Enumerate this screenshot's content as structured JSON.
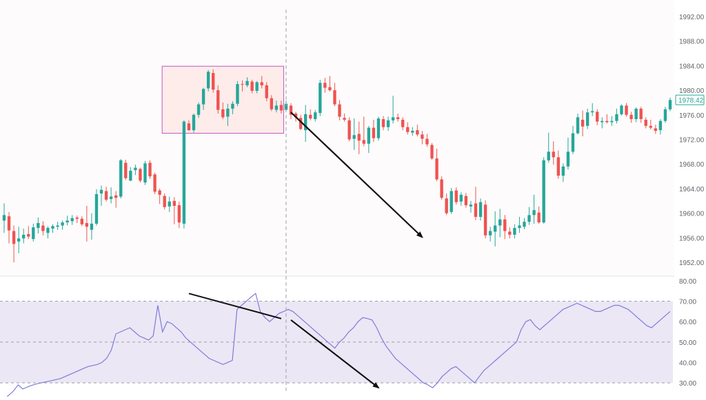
{
  "chart_data": [
    {
      "type": "candlestick",
      "title": "",
      "ylim": [
        1950,
        1994
      ],
      "y_ticks": [
        "1992.00",
        "1988.00",
        "1984.00",
        "1980.00",
        "1976.00",
        "1972.00",
        "1968.00",
        "1964.00",
        "1960.00",
        "1956.00",
        "1952.00"
      ],
      "y_tick_values": [
        1992,
        1988,
        1984,
        1980,
        1976,
        1972,
        1968,
        1964,
        1960,
        1956,
        1952
      ],
      "last_price_label": "1978.42",
      "last_price": 1978.42,
      "colors": {
        "up": "#26a69a",
        "down": "#ef5350",
        "box_border": "#c455c4",
        "box_fill": "#fde8e6",
        "arrow": "#111111",
        "crosshair": "#9aa0a6"
      },
      "consolidation_box": {
        "start_index": 33,
        "end_index": 57,
        "high": 1983.9,
        "low": 1973.0
      },
      "crosshair_index": 58,
      "trend_arrow": {
        "from_index": 59,
        "from_price": 1976.4,
        "to_index": 86,
        "to_price": 1956.1
      },
      "candles": [
        {
          "o": 1958.8,
          "h": 1961.6,
          "l": 1956.8,
          "c": 1959.7
        },
        {
          "o": 1959.5,
          "h": 1960.2,
          "l": 1955.1,
          "c": 1957.2
        },
        {
          "o": 1957.1,
          "h": 1958.0,
          "l": 1952.0,
          "c": 1955.0
        },
        {
          "o": 1955.4,
          "h": 1957.8,
          "l": 1953.5,
          "c": 1955.9
        },
        {
          "o": 1955.9,
          "h": 1957.5,
          "l": 1955.1,
          "c": 1956.5
        },
        {
          "o": 1956.6,
          "h": 1957.9,
          "l": 1955.8,
          "c": 1956.2
        },
        {
          "o": 1955.8,
          "h": 1958.3,
          "l": 1955.4,
          "c": 1957.7
        },
        {
          "o": 1957.6,
          "h": 1959.3,
          "l": 1956.7,
          "c": 1958.4
        },
        {
          "o": 1958.0,
          "h": 1958.7,
          "l": 1956.4,
          "c": 1957.1
        },
        {
          "o": 1956.8,
          "h": 1957.9,
          "l": 1955.9,
          "c": 1957.6
        },
        {
          "o": 1957.5,
          "h": 1958.2,
          "l": 1956.8,
          "c": 1957.9
        },
        {
          "o": 1957.8,
          "h": 1958.6,
          "l": 1957.3,
          "c": 1958.0
        },
        {
          "o": 1958.0,
          "h": 1958.8,
          "l": 1957.3,
          "c": 1958.5
        },
        {
          "o": 1958.5,
          "h": 1959.6,
          "l": 1958.0,
          "c": 1958.8
        },
        {
          "o": 1958.7,
          "h": 1959.7,
          "l": 1958.1,
          "c": 1959.2
        },
        {
          "o": 1959.3,
          "h": 1959.6,
          "l": 1958.4,
          "c": 1959.1
        },
        {
          "o": 1959.1,
          "h": 1959.5,
          "l": 1957.9,
          "c": 1958.2
        },
        {
          "o": 1958.4,
          "h": 1961.2,
          "l": 1955.4,
          "c": 1957.8
        },
        {
          "o": 1957.3,
          "h": 1960.0,
          "l": 1955.7,
          "c": 1958.3
        },
        {
          "o": 1958.3,
          "h": 1963.9,
          "l": 1958.0,
          "c": 1963.1
        },
        {
          "o": 1963.2,
          "h": 1964.5,
          "l": 1961.2,
          "c": 1963.8
        },
        {
          "o": 1963.6,
          "h": 1964.3,
          "l": 1961.9,
          "c": 1962.2
        },
        {
          "o": 1962.3,
          "h": 1964.2,
          "l": 1961.6,
          "c": 1962.7
        },
        {
          "o": 1962.9,
          "h": 1963.6,
          "l": 1960.9,
          "c": 1962.5
        },
        {
          "o": 1962.7,
          "h": 1968.8,
          "l": 1962.4,
          "c": 1968.6
        },
        {
          "o": 1968.2,
          "h": 1968.7,
          "l": 1965.4,
          "c": 1965.7
        },
        {
          "o": 1965.3,
          "h": 1967.5,
          "l": 1965.2,
          "c": 1966.9
        },
        {
          "o": 1967.0,
          "h": 1967.9,
          "l": 1966.2,
          "c": 1967.4
        },
        {
          "o": 1967.2,
          "h": 1967.4,
          "l": 1965.0,
          "c": 1965.3
        },
        {
          "o": 1965.0,
          "h": 1968.5,
          "l": 1964.6,
          "c": 1968.1
        },
        {
          "o": 1968.2,
          "h": 1968.6,
          "l": 1965.6,
          "c": 1966.0
        },
        {
          "o": 1966.3,
          "h": 1966.6,
          "l": 1963.1,
          "c": 1963.5
        },
        {
          "o": 1963.7,
          "h": 1964.0,
          "l": 1961.5,
          "c": 1963.0
        },
        {
          "o": 1962.8,
          "h": 1963.2,
          "l": 1960.6,
          "c": 1961.0
        },
        {
          "o": 1961.1,
          "h": 1962.7,
          "l": 1960.2,
          "c": 1961.9
        },
        {
          "o": 1962.0,
          "h": 1962.6,
          "l": 1958.2,
          "c": 1961.2
        },
        {
          "o": 1961.3,
          "h": 1961.9,
          "l": 1957.6,
          "c": 1958.5
        },
        {
          "o": 1958.3,
          "h": 1975.1,
          "l": 1957.5,
          "c": 1974.9
        },
        {
          "o": 1974.6,
          "h": 1975.1,
          "l": 1973.4,
          "c": 1973.5
        },
        {
          "o": 1973.5,
          "h": 1976.2,
          "l": 1973.1,
          "c": 1976.0
        },
        {
          "o": 1976.0,
          "h": 1978.0,
          "l": 1975.5,
          "c": 1977.7
        },
        {
          "o": 1977.7,
          "h": 1980.4,
          "l": 1976.8,
          "c": 1980.2
        },
        {
          "o": 1980.3,
          "h": 1983.3,
          "l": 1979.8,
          "c": 1983.0
        },
        {
          "o": 1982.8,
          "h": 1983.4,
          "l": 1979.6,
          "c": 1980.1
        },
        {
          "o": 1980.0,
          "h": 1980.8,
          "l": 1976.2,
          "c": 1976.8
        },
        {
          "o": 1976.9,
          "h": 1978.0,
          "l": 1975.3,
          "c": 1975.6
        },
        {
          "o": 1975.7,
          "h": 1977.8,
          "l": 1974.2,
          "c": 1977.0
        },
        {
          "o": 1977.0,
          "h": 1978.2,
          "l": 1976.1,
          "c": 1977.8
        },
        {
          "o": 1977.8,
          "h": 1981.5,
          "l": 1977.4,
          "c": 1981.0
        },
        {
          "o": 1981.0,
          "h": 1981.6,
          "l": 1979.8,
          "c": 1980.9
        },
        {
          "o": 1980.8,
          "h": 1982.1,
          "l": 1980.5,
          "c": 1981.5
        },
        {
          "o": 1981.4,
          "h": 1981.7,
          "l": 1979.5,
          "c": 1979.9
        },
        {
          "o": 1979.9,
          "h": 1981.5,
          "l": 1979.5,
          "c": 1981.3
        },
        {
          "o": 1981.3,
          "h": 1982.3,
          "l": 1980.3,
          "c": 1980.8
        },
        {
          "o": 1980.8,
          "h": 1981.3,
          "l": 1978.2,
          "c": 1978.7
        },
        {
          "o": 1978.7,
          "h": 1979.2,
          "l": 1976.6,
          "c": 1976.9
        },
        {
          "o": 1976.8,
          "h": 1978.3,
          "l": 1976.4,
          "c": 1977.5
        },
        {
          "o": 1977.6,
          "h": 1978.3,
          "l": 1976.2,
          "c": 1976.7
        },
        {
          "o": 1976.8,
          "h": 1978.3,
          "l": 1976.4,
          "c": 1977.8
        },
        {
          "o": 1977.5,
          "h": 1977.9,
          "l": 1975.3,
          "c": 1976.0
        },
        {
          "o": 1976.2,
          "h": 1976.5,
          "l": 1974.9,
          "c": 1975.6
        },
        {
          "o": 1975.5,
          "h": 1976.0,
          "l": 1973.5,
          "c": 1973.7
        },
        {
          "o": 1973.5,
          "h": 1977.6,
          "l": 1971.6,
          "c": 1976.1
        },
        {
          "o": 1976.0,
          "h": 1976.9,
          "l": 1975.1,
          "c": 1975.4
        },
        {
          "o": 1975.3,
          "h": 1976.8,
          "l": 1974.9,
          "c": 1976.4
        },
        {
          "o": 1976.3,
          "h": 1981.7,
          "l": 1975.8,
          "c": 1981.2
        },
        {
          "o": 1981.2,
          "h": 1982.0,
          "l": 1979.6,
          "c": 1980.4
        },
        {
          "o": 1980.5,
          "h": 1982.3,
          "l": 1979.8,
          "c": 1980.0
        },
        {
          "o": 1980.0,
          "h": 1981.2,
          "l": 1977.4,
          "c": 1977.7
        },
        {
          "o": 1977.7,
          "h": 1978.4,
          "l": 1975.1,
          "c": 1975.7
        },
        {
          "o": 1975.5,
          "h": 1976.2,
          "l": 1974.9,
          "c": 1975.2
        },
        {
          "o": 1975.1,
          "h": 1975.6,
          "l": 1971.7,
          "c": 1972.0
        },
        {
          "o": 1972.1,
          "h": 1975.4,
          "l": 1970.3,
          "c": 1972.7
        },
        {
          "o": 1972.9,
          "h": 1974.9,
          "l": 1969.6,
          "c": 1971.8
        },
        {
          "o": 1971.9,
          "h": 1975.7,
          "l": 1970.9,
          "c": 1971.3
        },
        {
          "o": 1971.3,
          "h": 1974.2,
          "l": 1969.8,
          "c": 1973.9
        },
        {
          "o": 1973.9,
          "h": 1975.2,
          "l": 1971.6,
          "c": 1972.2
        },
        {
          "o": 1972.2,
          "h": 1975.7,
          "l": 1971.8,
          "c": 1975.4
        },
        {
          "o": 1975.3,
          "h": 1975.8,
          "l": 1973.5,
          "c": 1974.0
        },
        {
          "o": 1974.0,
          "h": 1975.7,
          "l": 1973.4,
          "c": 1975.1
        },
        {
          "o": 1975.1,
          "h": 1979.1,
          "l": 1974.6,
          "c": 1975.6
        },
        {
          "o": 1975.6,
          "h": 1976.2,
          "l": 1974.9,
          "c": 1975.3
        },
        {
          "o": 1975.2,
          "h": 1975.6,
          "l": 1973.5,
          "c": 1974.0
        },
        {
          "o": 1974.0,
          "h": 1974.8,
          "l": 1972.8,
          "c": 1973.2
        },
        {
          "o": 1973.1,
          "h": 1974.0,
          "l": 1972.6,
          "c": 1973.4
        },
        {
          "o": 1973.5,
          "h": 1974.4,
          "l": 1972.5,
          "c": 1972.8
        },
        {
          "o": 1972.8,
          "h": 1973.4,
          "l": 1971.2,
          "c": 1972.1
        },
        {
          "o": 1972.1,
          "h": 1972.9,
          "l": 1970.8,
          "c": 1971.2
        },
        {
          "o": 1971.1,
          "h": 1971.4,
          "l": 1968.7,
          "c": 1968.9
        },
        {
          "o": 1968.9,
          "h": 1970.5,
          "l": 1965.2,
          "c": 1965.5
        },
        {
          "o": 1965.5,
          "h": 1966.0,
          "l": 1962.2,
          "c": 1962.5
        },
        {
          "o": 1962.4,
          "h": 1963.2,
          "l": 1959.7,
          "c": 1960.0
        },
        {
          "o": 1960.2,
          "h": 1964.1,
          "l": 1959.9,
          "c": 1963.6
        },
        {
          "o": 1963.7,
          "h": 1964.2,
          "l": 1961.4,
          "c": 1961.8
        },
        {
          "o": 1961.9,
          "h": 1963.4,
          "l": 1961.2,
          "c": 1963.0
        },
        {
          "o": 1962.8,
          "h": 1963.3,
          "l": 1960.9,
          "c": 1961.3
        },
        {
          "o": 1961.1,
          "h": 1962.0,
          "l": 1960.1,
          "c": 1961.4
        },
        {
          "o": 1961.6,
          "h": 1964.3,
          "l": 1958.9,
          "c": 1959.4
        },
        {
          "o": 1959.4,
          "h": 1962.4,
          "l": 1958.8,
          "c": 1961.8
        },
        {
          "o": 1961.4,
          "h": 1962.1,
          "l": 1955.9,
          "c": 1956.4
        },
        {
          "o": 1956.4,
          "h": 1957.8,
          "l": 1955.4,
          "c": 1957.1
        },
        {
          "o": 1957.0,
          "h": 1960.3,
          "l": 1954.6,
          "c": 1958.0
        },
        {
          "o": 1958.0,
          "h": 1960.7,
          "l": 1956.1,
          "c": 1959.0
        },
        {
          "o": 1959.0,
          "h": 1959.7,
          "l": 1955.8,
          "c": 1957.1
        },
        {
          "o": 1957.0,
          "h": 1957.7,
          "l": 1955.9,
          "c": 1956.5
        },
        {
          "o": 1956.5,
          "h": 1958.2,
          "l": 1955.9,
          "c": 1957.6
        },
        {
          "o": 1957.6,
          "h": 1959.4,
          "l": 1956.8,
          "c": 1958.0
        },
        {
          "o": 1957.8,
          "h": 1959.2,
          "l": 1957.4,
          "c": 1958.6
        },
        {
          "o": 1958.6,
          "h": 1961.0,
          "l": 1958.1,
          "c": 1959.7
        },
        {
          "o": 1959.7,
          "h": 1963.0,
          "l": 1958.3,
          "c": 1960.5
        },
        {
          "o": 1960.1,
          "h": 1961.1,
          "l": 1958.3,
          "c": 1958.5
        },
        {
          "o": 1958.5,
          "h": 1969.1,
          "l": 1958.3,
          "c": 1968.6
        },
        {
          "o": 1968.6,
          "h": 1973.1,
          "l": 1968.2,
          "c": 1970.0
        },
        {
          "o": 1970.0,
          "h": 1971.7,
          "l": 1967.9,
          "c": 1969.1
        },
        {
          "o": 1969.1,
          "h": 1970.2,
          "l": 1965.6,
          "c": 1966.1
        },
        {
          "o": 1966.1,
          "h": 1968.1,
          "l": 1965.1,
          "c": 1967.6
        },
        {
          "o": 1967.6,
          "h": 1972.3,
          "l": 1967.1,
          "c": 1970.0
        },
        {
          "o": 1970.0,
          "h": 1974.2,
          "l": 1969.6,
          "c": 1973.0
        },
        {
          "o": 1973.0,
          "h": 1976.2,
          "l": 1972.8,
          "c": 1975.6
        },
        {
          "o": 1975.2,
          "h": 1976.7,
          "l": 1972.5,
          "c": 1974.1
        },
        {
          "o": 1974.2,
          "h": 1977.0,
          "l": 1973.7,
          "c": 1976.4
        },
        {
          "o": 1976.4,
          "h": 1977.9,
          "l": 1975.8,
          "c": 1976.6
        },
        {
          "o": 1976.5,
          "h": 1976.9,
          "l": 1974.3,
          "c": 1974.9
        },
        {
          "o": 1974.8,
          "h": 1975.6,
          "l": 1973.8,
          "c": 1975.0
        },
        {
          "o": 1975.0,
          "h": 1976.1,
          "l": 1974.6,
          "c": 1974.8
        },
        {
          "o": 1974.8,
          "h": 1975.8,
          "l": 1974.2,
          "c": 1975.0
        },
        {
          "o": 1975.0,
          "h": 1977.0,
          "l": 1974.6,
          "c": 1976.1
        },
        {
          "o": 1976.1,
          "h": 1977.7,
          "l": 1975.9,
          "c": 1977.5
        },
        {
          "o": 1977.5,
          "h": 1977.9,
          "l": 1975.7,
          "c": 1976.0
        },
        {
          "o": 1976.0,
          "h": 1976.5,
          "l": 1974.7,
          "c": 1975.3
        },
        {
          "o": 1975.3,
          "h": 1977.2,
          "l": 1974.8,
          "c": 1977.0
        },
        {
          "o": 1977.0,
          "h": 1977.3,
          "l": 1974.7,
          "c": 1975.3
        },
        {
          "o": 1975.2,
          "h": 1975.6,
          "l": 1973.8,
          "c": 1974.2
        },
        {
          "o": 1974.2,
          "h": 1975.2,
          "l": 1973.6,
          "c": 1973.9
        },
        {
          "o": 1973.8,
          "h": 1974.4,
          "l": 1972.9,
          "c": 1973.4
        },
        {
          "o": 1973.5,
          "h": 1975.3,
          "l": 1972.8,
          "c": 1975.0
        },
        {
          "o": 1975.0,
          "h": 1977.3,
          "l": 1974.7,
          "c": 1976.9
        },
        {
          "o": 1976.9,
          "h": 1978.8,
          "l": 1976.6,
          "c": 1978.4
        }
      ]
    },
    {
      "type": "line",
      "ylim": [
        28,
        82
      ],
      "y_ticks": [
        "80.00",
        "70.00",
        "60.00",
        "50.00",
        "40.00",
        "30.00"
      ],
      "y_tick_values": [
        80,
        70,
        60,
        50,
        40,
        30
      ],
      "bands": [
        30,
        70
      ],
      "midline": 50,
      "colors": {
        "line": "#7e7bd8",
        "band_fill": "#ebe7f5",
        "band_line": "#9e9aa8",
        "arrow": "#111111"
      },
      "divergence_line": {
        "from_index": 38,
        "from_value": 73.8,
        "to_index": 57,
        "to_value": 61.5
      },
      "trend_arrow": {
        "from_index": 59,
        "from_value": 60.8,
        "to_index": 77,
        "to_value": 27.6
      },
      "values": [
        22,
        24,
        26,
        29,
        27,
        28,
        28.8,
        29.5,
        30,
        30.5,
        31,
        31.5,
        32,
        33,
        34,
        35,
        36,
        37,
        38,
        38.5,
        39,
        40,
        42,
        46,
        54,
        55,
        56,
        57,
        55,
        53,
        52,
        51,
        53,
        68,
        55,
        60,
        59,
        57,
        55,
        52,
        50,
        48,
        46,
        44,
        42,
        41,
        40,
        39,
        40,
        41,
        66,
        68,
        70,
        72,
        73.8,
        65,
        62,
        60,
        62,
        64,
        65,
        66,
        65,
        63,
        61,
        59,
        57,
        55,
        53,
        51,
        49,
        47,
        50,
        52,
        55,
        57,
        60,
        62,
        61.5,
        60.8,
        57,
        52,
        48,
        45,
        42,
        40,
        38,
        36,
        34,
        32,
        30,
        29,
        27.6,
        30,
        33,
        35,
        37,
        38,
        36,
        34,
        32,
        30,
        33,
        36,
        38,
        40,
        42,
        44,
        46,
        48,
        50,
        56,
        60,
        61,
        58,
        56,
        58,
        60,
        62,
        64,
        66,
        67,
        68,
        69,
        68,
        67,
        66,
        65,
        65,
        66,
        67,
        68,
        68,
        67,
        66,
        64,
        62,
        60,
        58,
        57,
        59,
        61,
        63,
        65
      ]
    }
  ]
}
